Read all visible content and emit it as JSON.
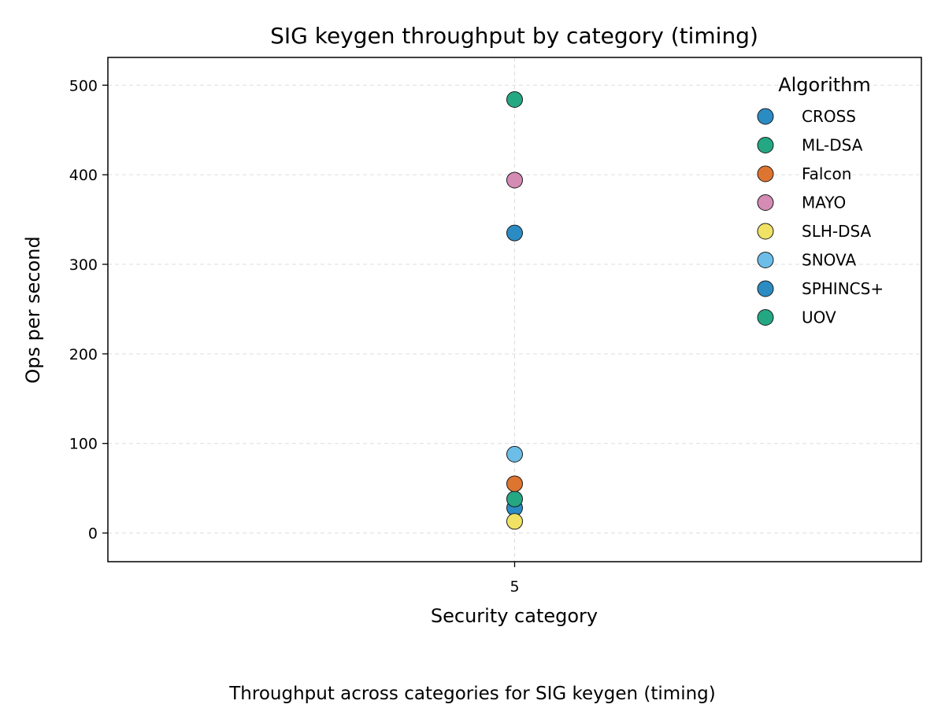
{
  "chart_data": {
    "type": "scatter",
    "title": "SIG keygen throughput by category (timing)",
    "xlabel": "Security category",
    "ylabel": "Ops per second",
    "x_categories": [
      "5"
    ],
    "ylim": [
      -32,
      531
    ],
    "yticks": [
      0,
      100,
      200,
      300,
      400,
      500
    ],
    "grid": true,
    "legend_title": "Algorithm",
    "legend_position": "top-right",
    "series": [
      {
        "name": "CROSS",
        "color": "#2b8cc4",
        "points": [
          {
            "x": "5",
            "y": 28
          }
        ]
      },
      {
        "name": "ML-DSA",
        "color": "#24a884",
        "points": [
          {
            "x": "5",
            "y": 38
          }
        ]
      },
      {
        "name": "Falcon",
        "color": "#dd7530",
        "points": [
          {
            "x": "5",
            "y": 55
          }
        ]
      },
      {
        "name": "MAYO",
        "color": "#d48bb4",
        "points": [
          {
            "x": "5",
            "y": 394
          }
        ]
      },
      {
        "name": "SLH-DSA",
        "color": "#f0e264",
        "points": [
          {
            "x": "5",
            "y": 13
          }
        ]
      },
      {
        "name": "SNOVA",
        "color": "#6cbde8",
        "points": [
          {
            "x": "5",
            "y": 88
          }
        ]
      },
      {
        "name": "SPHINCS+",
        "color": "#2b8cc4",
        "points": [
          {
            "x": "5",
            "y": 335
          }
        ]
      },
      {
        "name": "UOV",
        "color": "#24a884",
        "points": [
          {
            "x": "5",
            "y": 484
          }
        ]
      }
    ],
    "caption": "Throughput across categories for SIG keygen (timing)"
  }
}
